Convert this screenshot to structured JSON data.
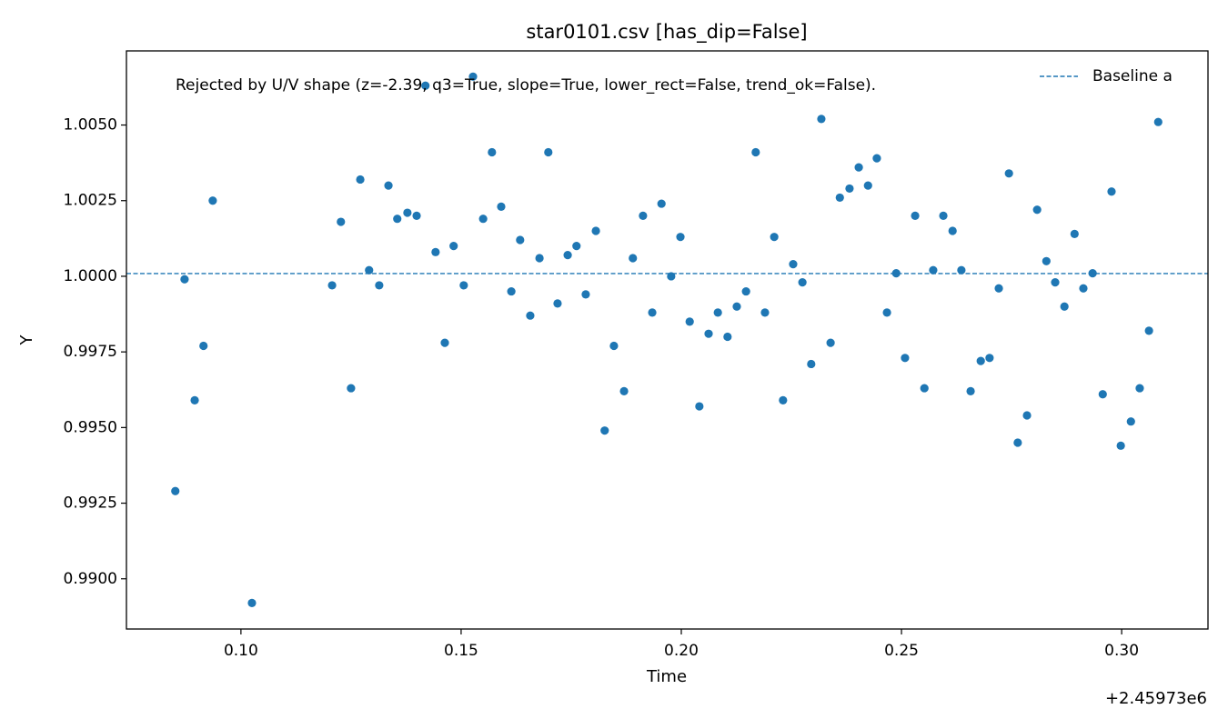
{
  "chart_data": {
    "type": "scatter",
    "title": "star0101.csv [has_dip=False]",
    "annotation": "Rejected by U/V shape (z=-2.39, q3=True, slope=True, lower_rect=False, trend_ok=False).",
    "x_label": "Time",
    "y_label": "Y",
    "x_offset_label": "+2.45973e6",
    "color": "#1f77b4",
    "x": [
      0.0851,
      0.0872,
      0.0895,
      0.0915,
      0.0936,
      0.1025,
      0.1207,
      0.1227,
      0.125,
      0.1271,
      0.1291,
      0.1314,
      0.1335,
      0.1355,
      0.1378,
      0.1399,
      0.1419,
      0.1442,
      0.1463,
      0.1483,
      0.1506,
      0.1527,
      0.155,
      0.157,
      0.1591,
      0.1614,
      0.1634,
      0.1657,
      0.1678,
      0.1698,
      0.1719,
      0.1742,
      0.1762,
      0.1783,
      0.1806,
      0.1826,
      0.1847,
      0.187,
      0.189,
      0.1913,
      0.1934,
      0.1955,
      0.1977,
      0.1998,
      0.2019,
      0.2041,
      0.2062,
      0.2083,
      0.2105,
      0.2126,
      0.2147,
      0.2169,
      0.219,
      0.2211,
      0.2231,
      0.2254,
      0.2275,
      0.2295,
      0.2318,
      0.2339,
      0.236,
      0.2382,
      0.2403,
      0.2424,
      0.2444,
      0.2467,
      0.2488,
      0.2508,
      0.2531,
      0.2552,
      0.2572,
      0.2595,
      0.2616,
      0.2636,
      0.2657,
      0.268,
      0.27,
      0.2721,
      0.2744,
      0.2764,
      0.2785,
      0.2808,
      0.2829,
      0.2849,
      0.287,
      0.2893,
      0.2913,
      0.2934,
      0.2957,
      0.2977,
      0.2998,
      0.3021,
      0.3041,
      0.3062,
      0.3083
    ],
    "values": [
      0.9929,
      0.9999,
      0.9959,
      0.9977,
      1.0025,
      0.9892,
      0.9997,
      1.0018,
      0.9963,
      1.0032,
      1.0002,
      0.9997,
      1.003,
      1.0019,
      1.0021,
      1.002,
      1.0063,
      1.0008,
      0.9978,
      1.001,
      0.9997,
      1.0066,
      1.0019,
      1.0041,
      1.0023,
      0.9995,
      1.0012,
      0.9987,
      1.0006,
      1.0041,
      0.9991,
      1.0007,
      1.001,
      0.9994,
      1.0015,
      0.9949,
      0.9977,
      0.9962,
      1.0006,
      1.002,
      0.9988,
      1.0024,
      1.0,
      1.0013,
      0.9985,
      0.9957,
      0.9981,
      0.9988,
      0.998,
      0.999,
      0.9995,
      1.0041,
      0.9988,
      1.0013,
      0.9959,
      1.0004,
      0.9998,
      0.9971,
      1.0052,
      0.9978,
      1.0026,
      1.0029,
      1.0036,
      1.003,
      1.0039,
      0.9988,
      1.0001,
      0.9973,
      1.002,
      0.9963,
      1.0002,
      1.002,
      1.0015,
      1.0002,
      0.9962,
      0.9972,
      0.9973,
      0.9996,
      1.0034,
      0.9945,
      0.9954,
      1.0022,
      1.0005,
      0.9998,
      0.999,
      1.0014,
      0.9996,
      1.0001,
      0.9961,
      1.0028,
      0.9944,
      0.9952,
      0.9963,
      0.9982,
      1.0051
    ],
    "hlines": [
      {
        "name": "Baseline a",
        "y": 1.00009,
        "color": "#1f77b4"
      }
    ],
    "legend": "upper right",
    "xlim": [
      0.074,
      0.3196
    ],
    "ylim": [
      0.98834,
      1.00745
    ],
    "xticks": [
      {
        "value": 0.1,
        "label": "0.10"
      },
      {
        "value": 0.15,
        "label": "0.15"
      },
      {
        "value": 0.2,
        "label": "0.20"
      },
      {
        "value": 0.25,
        "label": "0.25"
      },
      {
        "value": 0.3,
        "label": "0.30"
      }
    ],
    "yticks": [
      {
        "value": 0.99,
        "label": "0.9900"
      },
      {
        "value": 0.9925,
        "label": "0.9925"
      },
      {
        "value": 0.995,
        "label": "0.9950"
      },
      {
        "value": 0.9975,
        "label": "0.9975"
      },
      {
        "value": 1.0,
        "label": "1.0000"
      },
      {
        "value": 1.0025,
        "label": "1.0025"
      },
      {
        "value": 1.005,
        "label": "1.0050"
      }
    ]
  }
}
